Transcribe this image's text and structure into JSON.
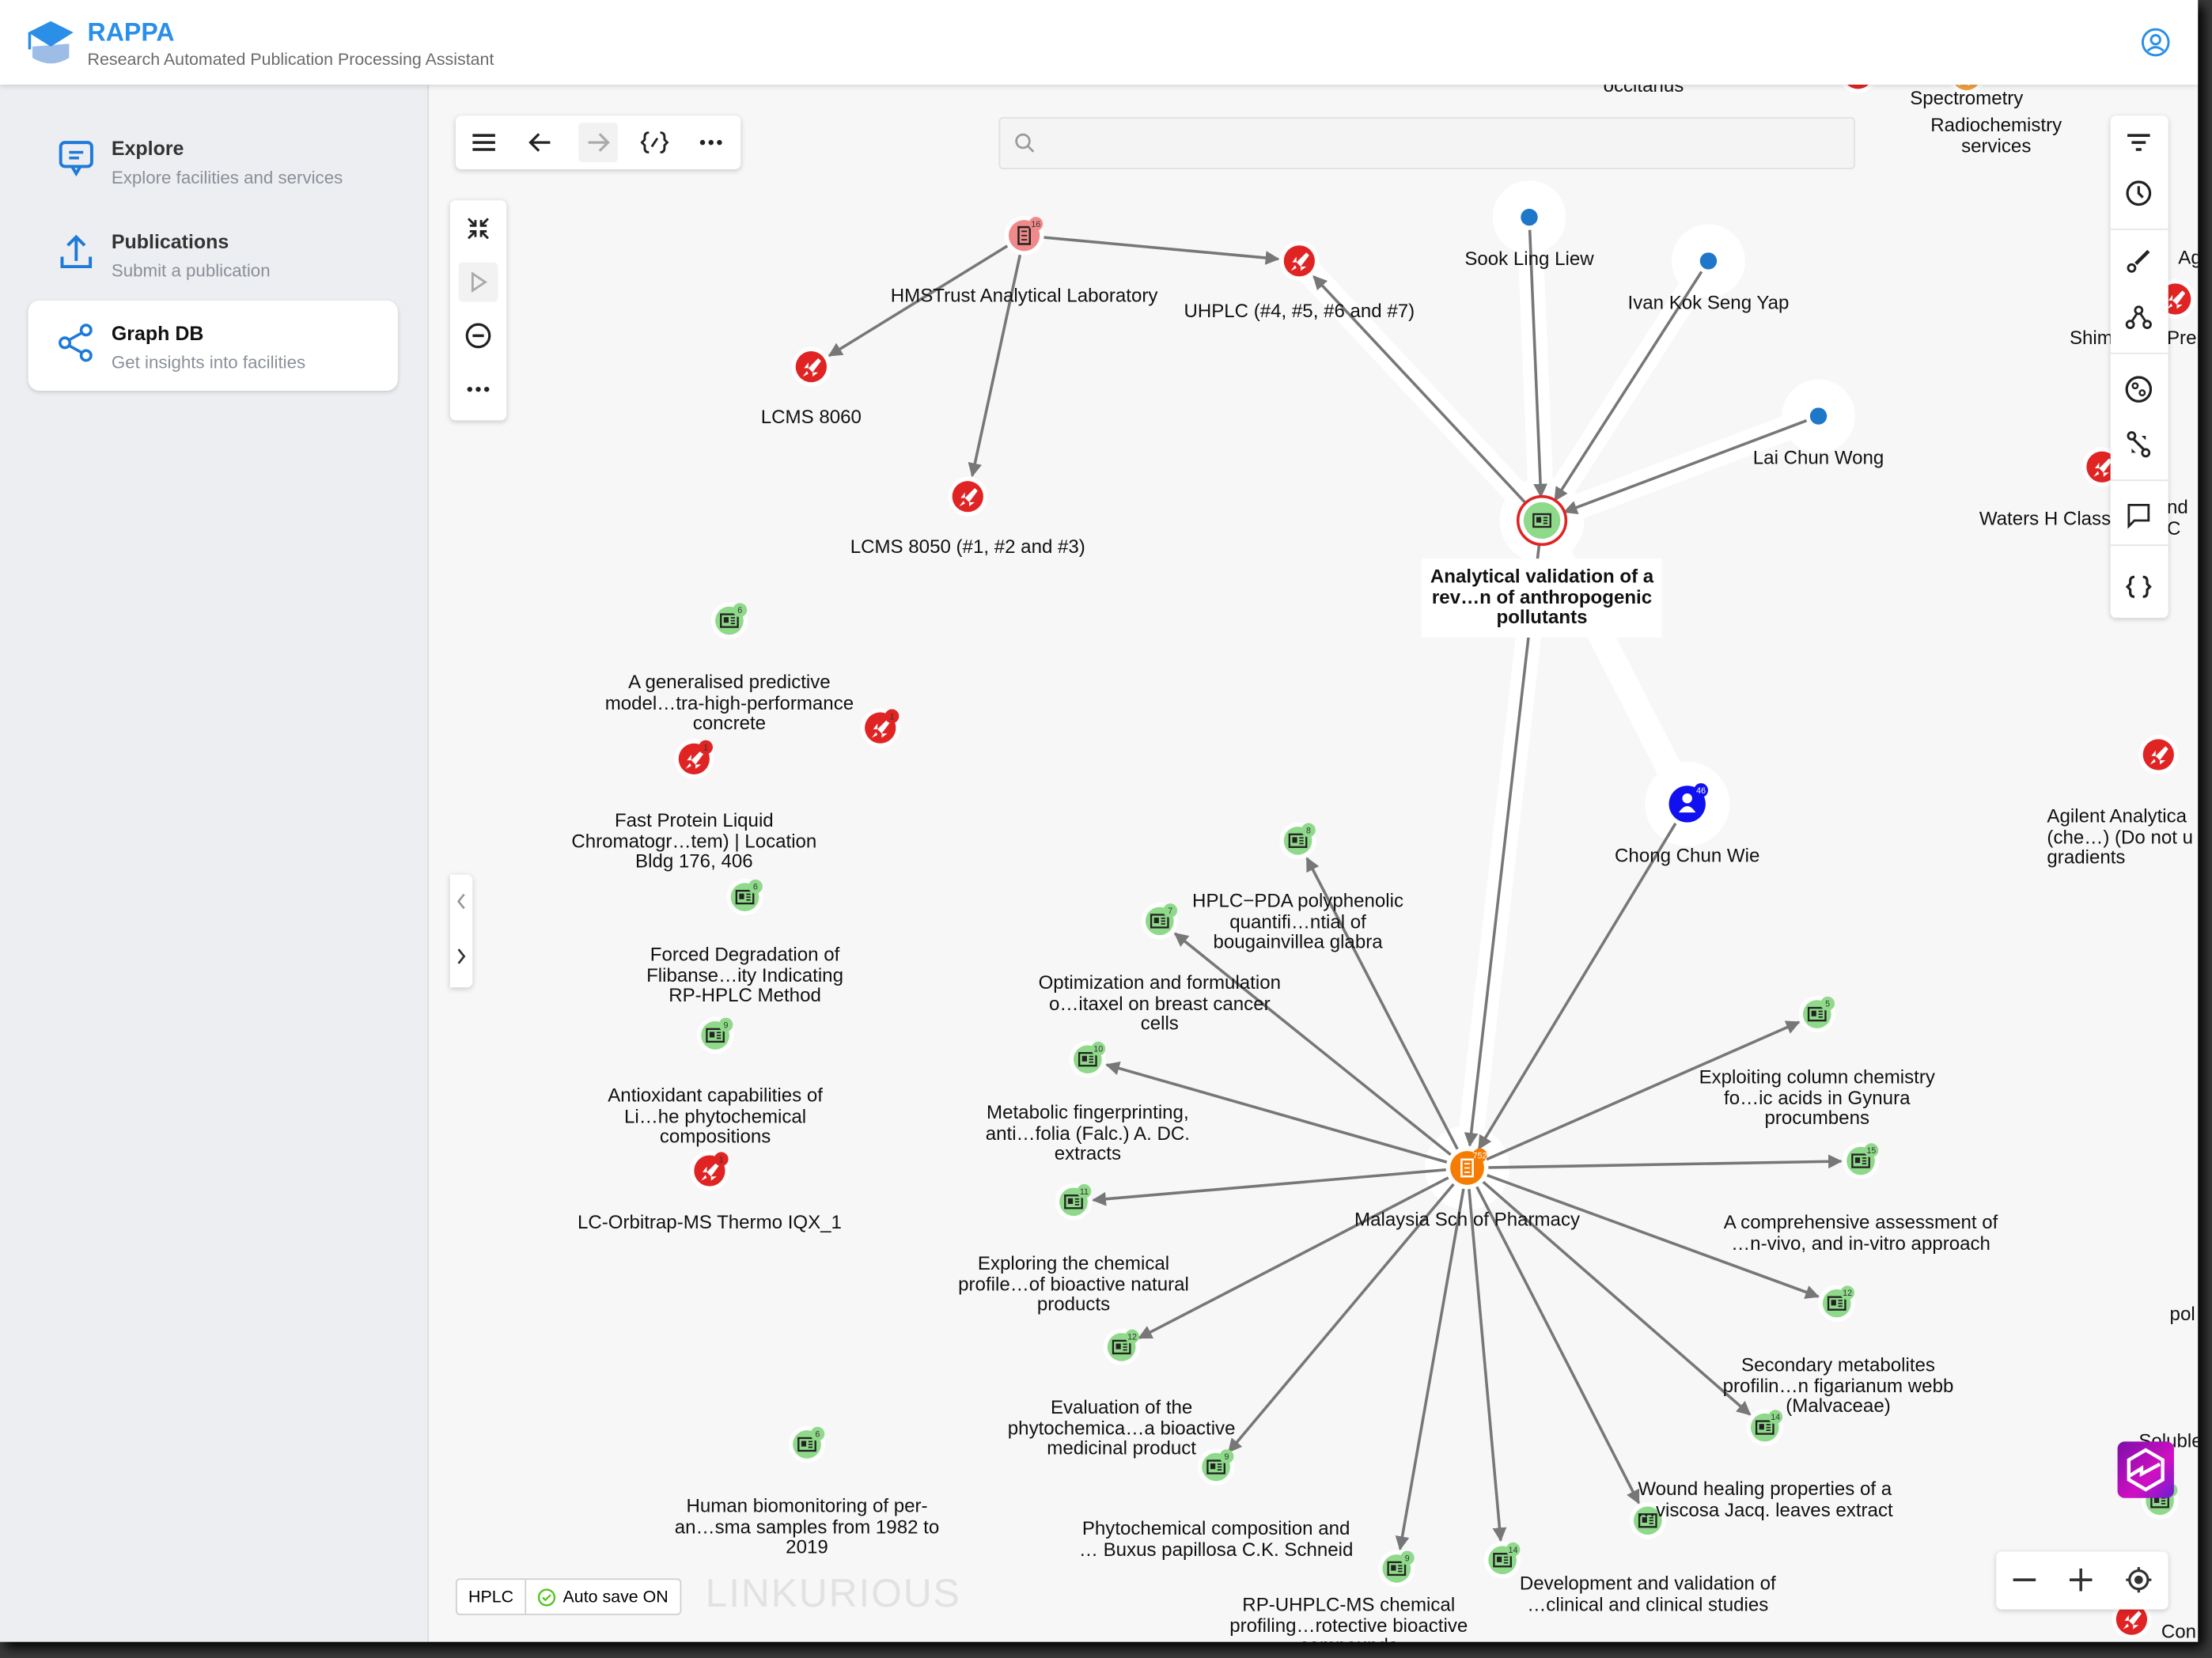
{
  "app": {
    "name": "RAPPA",
    "tagline": "Research Automated Publication Processing Assistant"
  },
  "sidebar": {
    "items": [
      {
        "title": "Explore",
        "subtitle": "Explore facilities and services",
        "icon": "chat-icon"
      },
      {
        "title": "Publications",
        "subtitle": "Submit a publication",
        "icon": "upload-icon"
      },
      {
        "title": "Graph DB",
        "subtitle": "Get insights into facilities",
        "icon": "share-icon",
        "active": true
      }
    ]
  },
  "search": {
    "placeholder": "",
    "value": ""
  },
  "status": {
    "tag": "HPLC",
    "autosave": "Auto save ON"
  },
  "watermark": "LINKURIOUS",
  "colors": {
    "accent": "#2b8fe8",
    "publication": "#8fd98a",
    "facility": "#e02424",
    "person_small": "#1f77c9",
    "person": "#1010f0",
    "organisation": "#f57c00",
    "lab": "#f08a8a"
  },
  "graph": {
    "nodes": [
      {
        "id": "hms",
        "type": "lab",
        "label": "HMSTrust Analytical Laboratory",
        "badge": "16"
      },
      {
        "id": "uhplc",
        "type": "facility",
        "label": "UHPLC (#4, #5, #6 and #7)"
      },
      {
        "id": "lcms8060",
        "type": "facility",
        "label": "LCMS 8060"
      },
      {
        "id": "lcms8050",
        "type": "facility",
        "label": "LCMS 8050 (#1, #2 and #3)"
      },
      {
        "id": "sook",
        "type": "person_small",
        "label": "Sook Ling Liew"
      },
      {
        "id": "ivan",
        "type": "person_small",
        "label": "Ivan Kok Seng Yap"
      },
      {
        "id": "lai",
        "type": "person_small",
        "label": "Lai Chun Wong"
      },
      {
        "id": "aval",
        "type": "publication_selected",
        "label": "Analytical validation of a\nrev…n of anthropogenic\npollutants"
      },
      {
        "id": "chong",
        "type": "person",
        "label": "Chong Chun Wie",
        "badge": "46"
      },
      {
        "id": "msp",
        "type": "organisation",
        "label": "Malaysia Sch of Pharmacy",
        "badge": "752"
      },
      {
        "id": "p1",
        "type": "publication",
        "label": "A generalised predictive\nmodel…tra-high-performance\nconcrete",
        "badge": "6"
      },
      {
        "id": "r1",
        "type": "facility",
        "label": "",
        "badge": "1"
      },
      {
        "id": "r2",
        "type": "facility",
        "label": "Fast Protein Liquid\nChromatogr…tem) | Location\nBldg 176, 406",
        "badge": "1"
      },
      {
        "id": "p2",
        "type": "publication",
        "label": "Forced Degradation of\nFlibanse…ity Indicating\nRP-HPLC Method",
        "badge": "6"
      },
      {
        "id": "p3",
        "type": "publication",
        "label": "Antioxidant capabilities of\nLi…he phytochemical\ncompositions",
        "badge": "9"
      },
      {
        "id": "r3",
        "type": "facility",
        "label": "LC-Orbitrap-MS Thermo IQX_1",
        "badge": "1"
      },
      {
        "id": "p4",
        "type": "publication",
        "label": "HPLC−PDA polyphenolic\nquantifi…ntial of\nbougainvillea glabra",
        "badge": "8"
      },
      {
        "id": "p5",
        "type": "publication",
        "label": "Optimization and formulation\no…itaxel on breast cancer\ncells",
        "badge": "7"
      },
      {
        "id": "p6",
        "type": "publication",
        "label": "Metabolic fingerprinting,\nanti…folia (Falc.) A. DC.\nextracts",
        "badge": "10"
      },
      {
        "id": "p7",
        "type": "publication",
        "label": "Exploring the chemical\nprofile…of bioactive natural\nproducts",
        "badge": "11"
      },
      {
        "id": "p8",
        "type": "publication",
        "label": "Evaluation of the\nphytochemica…a bioactive\nmedicinal product",
        "badge": "12"
      },
      {
        "id": "p9",
        "type": "publication",
        "label": "Phytochemical composition and\n… Buxus papillosa C.K. Schneid",
        "badge": "9"
      },
      {
        "id": "p10",
        "type": "publication",
        "label": "RP-UHPLC-MS chemical\nprofiling…rotective bioactive\ncompounds",
        "badge": "9"
      },
      {
        "id": "p11",
        "type": "publication",
        "label": "Development and validation of\n…clinical and clinical studies",
        "badge": "14"
      },
      {
        "id": "p12",
        "type": "publication",
        "label": "Wound healing properties of a\n…viscosa Jacq. leaves extract",
        "badge": ""
      },
      {
        "id": "p13",
        "type": "publication",
        "label": "Secondary metabolites\nprofilin…n figarianum webb\n(Malvaceae)",
        "badge": "14"
      },
      {
        "id": "p14",
        "type": "publication",
        "label": "A comprehensive assessment of\n…n-vivo, and in-vitro approach",
        "badge": "12"
      },
      {
        "id": "p15",
        "type": "publication",
        "label": "",
        "badge": "15"
      },
      {
        "id": "p16",
        "type": "publication",
        "label": "Exploiting column chemistry\nfo…ic acids in Gynura\nprocumbens",
        "badge": "5"
      },
      {
        "id": "p17",
        "type": "publication",
        "label": "Human biomonitoring of per-\nan…sma samples from 1982 to\n2019",
        "badge": "6"
      },
      {
        "id": "x1",
        "type": "facility",
        "label": "Ag"
      },
      {
        "id": "x2",
        "type": "facility",
        "label": "Waters H Class"
      },
      {
        "id": "x3",
        "type": "facility",
        "label": "Agilent Analytica\n(che…) (Do not u\ngradients"
      },
      {
        "id": "x4",
        "type": "publication",
        "label": "Soluble\ns",
        "badge": "8"
      },
      {
        "id": "x5",
        "type": "facility",
        "label": "Con"
      },
      {
        "id": "x6",
        "type": "facility",
        "label": ""
      },
      {
        "id": "x7",
        "type": "facility_orange",
        "label": "Spectrometry"
      }
    ],
    "extra_labels": [
      "occitanus",
      "Radiochemistry services",
      "Shim",
      "Prep",
      "nd C",
      "pol"
    ],
    "edges": [
      [
        "hms",
        "uhplc"
      ],
      [
        "hms",
        "lcms8060"
      ],
      [
        "hms",
        "lcms8050"
      ],
      [
        "aval",
        "uhplc"
      ],
      [
        "sook",
        "aval"
      ],
      [
        "ivan",
        "aval"
      ],
      [
        "lai",
        "aval"
      ],
      [
        "aval",
        "msp"
      ],
      [
        "chong",
        "msp"
      ],
      [
        "msp",
        "p4"
      ],
      [
        "msp",
        "p5"
      ],
      [
        "msp",
        "p6"
      ],
      [
        "msp",
        "p7"
      ],
      [
        "msp",
        "p8"
      ],
      [
        "msp",
        "p9"
      ],
      [
        "msp",
        "p10"
      ],
      [
        "msp",
        "p11"
      ],
      [
        "msp",
        "p12"
      ],
      [
        "msp",
        "p13"
      ],
      [
        "msp",
        "p14"
      ],
      [
        "msp",
        "p15"
      ],
      [
        "msp",
        "p16"
      ]
    ],
    "halos": [
      [
        "sook",
        "aval"
      ],
      [
        "ivan",
        "aval"
      ],
      [
        "lai",
        "aval"
      ],
      [
        "aval",
        "msp"
      ],
      [
        "aval",
        "chong"
      ],
      [
        "aval",
        "uhplc"
      ]
    ]
  }
}
